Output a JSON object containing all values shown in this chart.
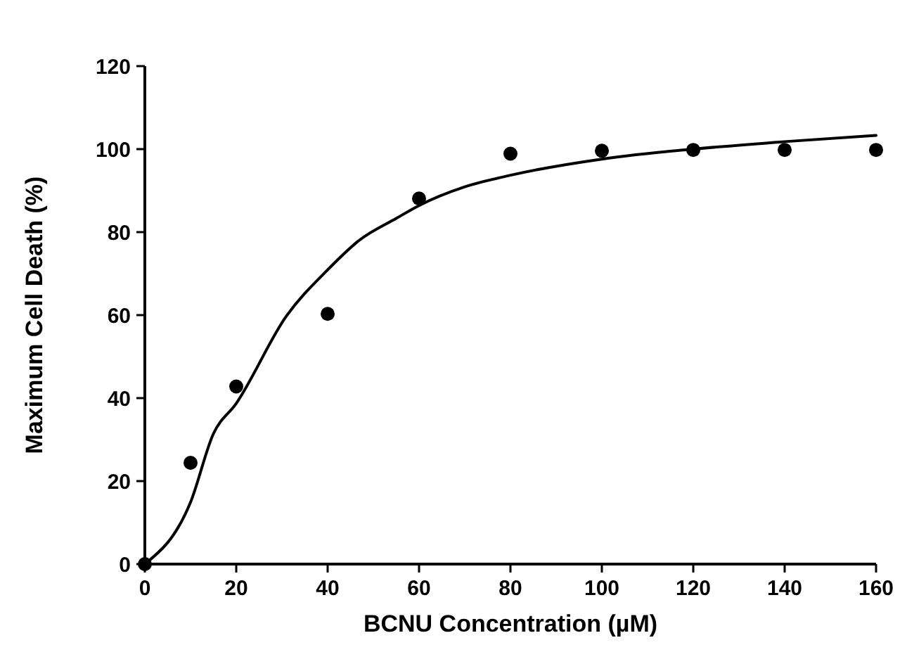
{
  "chart_data": {
    "type": "scatter",
    "xlabel": "BCNU Concentration (µM)",
    "ylabel": "Maximum Cell Death (%)",
    "xlim": [
      0,
      160
    ],
    "xticks": [
      0,
      20,
      40,
      60,
      80,
      100,
      120,
      140,
      160
    ],
    "ylim": [
      0,
      120
    ],
    "yticks": [
      0,
      20,
      40,
      60,
      80,
      100,
      120
    ],
    "grid": false,
    "series": [
      {
        "color": "#000000",
        "marker": "circle",
        "x": [
          0,
          10,
          20,
          40,
          60,
          80,
          100,
          120,
          140,
          160
        ],
        "values": [
          0,
          24.4,
          42.8,
          60.3,
          88.1,
          98.9,
          99.6,
          99.8,
          99.8,
          99.8
        ]
      },
      {
        "type": "line",
        "color": "#000000",
        "marker": "none",
        "line_style": "solid",
        "x": [
          0,
          10,
          15,
          20,
          31,
          40,
          47,
          55,
          60,
          70,
          80,
          100,
          120,
          140,
          160
        ],
        "values": [
          0,
          14.9,
          31.4,
          38.7,
          59.8,
          70.9,
          78.1,
          83.3,
          86.4,
          90.9,
          93.7,
          97.6,
          100,
          101.8,
          103.3
        ]
      }
    ]
  }
}
